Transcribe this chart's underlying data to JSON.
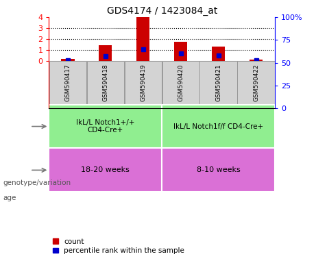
{
  "title": "GDS4174 / 1423084_at",
  "samples": [
    "GSM590417",
    "GSM590418",
    "GSM590419",
    "GSM590420",
    "GSM590421",
    "GSM590422"
  ],
  "count_values": [
    0.15,
    1.4,
    4.0,
    1.75,
    1.3,
    0.1
  ],
  "percentile_values": [
    0.05,
    0.45,
    1.05,
    0.7,
    0.48,
    0.05
  ],
  "ylim_left": [
    0,
    4
  ],
  "ylim_right": [
    0,
    100
  ],
  "yticks_left": [
    0,
    1,
    2,
    3,
    4
  ],
  "yticks_right": [
    0,
    25,
    50,
    75,
    100
  ],
  "ytick_labels_left": [
    "0",
    "1",
    "2",
    "3",
    "4"
  ],
  "ytick_labels_right": [
    "0",
    "25",
    "50",
    "75",
    "100%"
  ],
  "bar_color": "#cc0000",
  "dot_color": "#0000cc",
  "genotype_groups": [
    {
      "label": "IkL/L Notch1+/+\nCD4-Cre+",
      "start": 0,
      "end": 3,
      "color": "#90ee90"
    },
    {
      "label": "IkL/L Notch1f/f CD4-Cre+",
      "start": 3,
      "end": 6,
      "color": "#90ee90"
    }
  ],
  "age_groups": [
    {
      "label": "18-20 weeks",
      "start": 0,
      "end": 3,
      "color": "#da70d6"
    },
    {
      "label": "8-10 weeks",
      "start": 3,
      "end": 6,
      "color": "#da70d6"
    }
  ],
  "genotype_label": "genotype/variation",
  "age_label": "age",
  "legend_count_label": "count",
  "legend_percentile_label": "percentile rank within the sample",
  "sample_box_color": "#d3d3d3",
  "sample_box_edge_color": "#999999",
  "bar_width": 0.35
}
